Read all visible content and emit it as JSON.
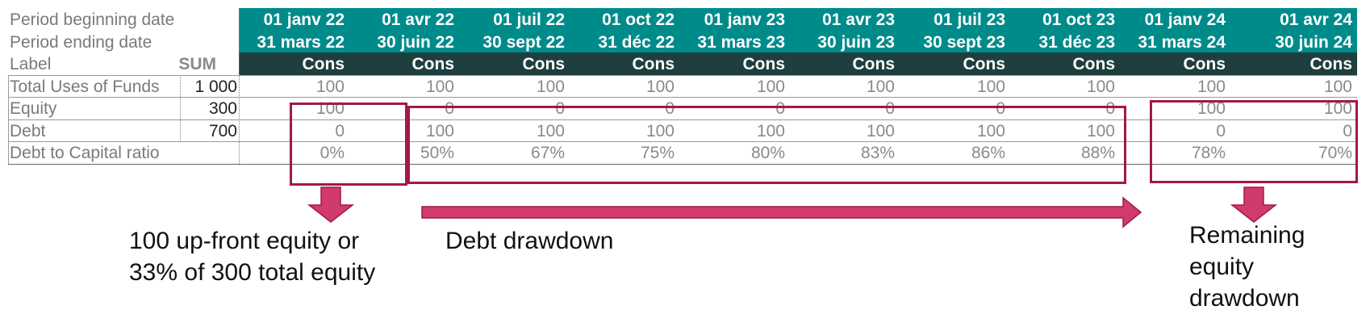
{
  "row_labels": {
    "period_begin": "Period beginning date",
    "period_end": "Period ending date",
    "label": "Label",
    "sum": "SUM"
  },
  "periods": [
    {
      "begin": "01 janv 22",
      "end": "31 mars 22",
      "label": "Cons"
    },
    {
      "begin": "01 avr 22",
      "end": "30 juin 22",
      "label": "Cons"
    },
    {
      "begin": "01 juil 22",
      "end": "30 sept 22",
      "label": "Cons"
    },
    {
      "begin": "01 oct 22",
      "end": "31 déc 22",
      "label": "Cons"
    },
    {
      "begin": "01 janv 23",
      "end": "31 mars 23",
      "label": "Cons"
    },
    {
      "begin": "01 avr 23",
      "end": "30 juin 23",
      "label": "Cons"
    },
    {
      "begin": "01 juil 23",
      "end": "30 sept 23",
      "label": "Cons"
    },
    {
      "begin": "01 oct 23",
      "end": "31 déc 23",
      "label": "Cons"
    },
    {
      "begin": "01 janv 24",
      "end": "31 mars 24",
      "label": "Cons"
    },
    {
      "begin": "01 avr 24",
      "end": "30 juin 24",
      "label": "Cons"
    }
  ],
  "rows": [
    {
      "label": "Total Uses of Funds",
      "sum": "1 000",
      "values": [
        "100",
        "100",
        "100",
        "100",
        "100",
        "100",
        "100",
        "100",
        "100",
        "100"
      ]
    },
    {
      "label": "Equity",
      "sum": "300",
      "values": [
        "100",
        "0",
        "0",
        "0",
        "0",
        "0",
        "0",
        "0",
        "100",
        "100"
      ]
    },
    {
      "label": "Debt",
      "sum": "700",
      "values": [
        "0",
        "100",
        "100",
        "100",
        "100",
        "100",
        "100",
        "100",
        "0",
        "0"
      ]
    },
    {
      "label": "Debt to Capital ratio",
      "sum": "",
      "values": [
        "0%",
        "50%",
        "67%",
        "75%",
        "80%",
        "83%",
        "86%",
        "88%",
        "78%",
        "70%"
      ]
    }
  ],
  "annotations": {
    "upfront": [
      "100 up-front equity or",
      "33% of 300 total equity"
    ],
    "drawdown": "Debt drawdown",
    "remaining": [
      "Remaining",
      "equity",
      "drawdown"
    ]
  },
  "colors": {
    "header_teal": "#008b8b",
    "header_dark": "#1f3f3f",
    "highlight": "#a2184a",
    "arrow": "#d13a6c"
  }
}
